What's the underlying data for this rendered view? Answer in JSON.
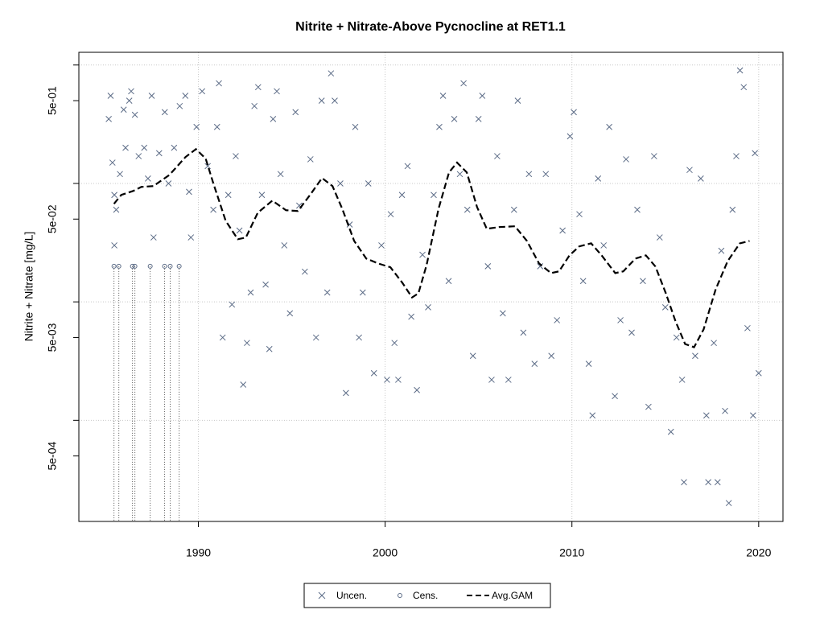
{
  "chart_data": {
    "type": "scatter",
    "title": "Nitrite + Nitrate-Above Pycnocline at RET1.1",
    "y_label": "Nitrite + Nitrate [mg/L]",
    "log_y": true,
    "grid": true,
    "legend": "bottom",
    "xlim": [
      1983.6,
      2021.3
    ],
    "ylim": [
      0.00014,
      1.28
    ],
    "xticks": [
      1990,
      2000,
      2010,
      2020
    ],
    "yticks": [
      {
        "value": 0.5,
        "label": "5e-01"
      },
      {
        "value": 0.05,
        "label": "5e-02"
      },
      {
        "value": 0.005,
        "label": "5e-03"
      },
      {
        "value": 0.0005,
        "label": "5e-04"
      }
    ],
    "yminor_ticks": [
      1,
      0.1,
      0.01,
      0.001
    ],
    "series": [
      {
        "name": "Uncen.",
        "marker": "x",
        "color": "#5b6b86",
        "x": [
          1985.2,
          1985.3,
          1985.4,
          1985.5,
          1985.5,
          1985.6,
          1985.8,
          1986.0,
          1986.1,
          1986.3,
          1986.4,
          1986.6,
          1986.8,
          1987.1,
          1987.3,
          1987.5,
          1987.6,
          1987.9,
          1988.2,
          1988.4,
          1988.7,
          1989.0,
          1989.3,
          1989.5,
          1989.6,
          1989.9,
          1990.2,
          1990.5,
          1990.8,
          1991.0,
          1991.1,
          1991.3,
          1991.6,
          1991.8,
          1992.0,
          1992.2,
          1992.4,
          1992.6,
          1992.8,
          1993.0,
          1993.2,
          1993.4,
          1993.6,
          1993.8,
          1994.0,
          1994.2,
          1994.4,
          1994.6,
          1994.9,
          1995.2,
          1995.4,
          1995.7,
          1996.0,
          1996.3,
          1996.6,
          1996.9,
          1997.1,
          1997.3,
          1997.6,
          1997.9,
          1998.1,
          1998.4,
          1998.6,
          1998.8,
          1999.1,
          1999.4,
          1999.8,
          2000.1,
          2000.3,
          2000.5,
          2000.7,
          2000.9,
          2001.2,
          2001.4,
          2001.7,
          2002.0,
          2002.3,
          2002.6,
          2002.9,
          2003.1,
          2003.4,
          2003.7,
          2004.0,
          2004.2,
          2004.4,
          2004.7,
          2005.0,
          2005.2,
          2005.5,
          2005.7,
          2006.0,
          2006.3,
          2006.6,
          2006.9,
          2007.1,
          2007.4,
          2007.7,
          2008.0,
          2008.3,
          2008.6,
          2008.9,
          2009.2,
          2009.5,
          2009.9,
          2010.1,
          2010.4,
          2010.6,
          2010.9,
          2011.1,
          2011.4,
          2011.7,
          2012.0,
          2012.3,
          2012.6,
          2012.9,
          2013.2,
          2013.5,
          2013.8,
          2014.1,
          2014.4,
          2014.7,
          2015.0,
          2015.3,
          2015.6,
          2015.9,
          2016.0,
          2016.3,
          2016.6,
          2016.9,
          2017.2,
          2017.3,
          2017.6,
          2017.8,
          2018.0,
          2018.2,
          2018.4,
          2018.6,
          2018.8,
          2019.0,
          2019.2,
          2019.4,
          2019.7,
          2019.8,
          2020.0
        ],
        "values": [
          0.35,
          0.55,
          0.15,
          0.08,
          0.03,
          0.06,
          0.12,
          0.42,
          0.2,
          0.5,
          0.6,
          0.38,
          0.17,
          0.2,
          0.11,
          0.55,
          0.035,
          0.18,
          0.4,
          0.1,
          0.2,
          0.45,
          0.55,
          0.085,
          0.035,
          0.3,
          0.6,
          0.14,
          0.06,
          0.3,
          0.7,
          0.005,
          0.08,
          0.0095,
          0.17,
          0.04,
          0.002,
          0.0045,
          0.012,
          0.45,
          0.65,
          0.08,
          0.014,
          0.004,
          0.35,
          0.6,
          0.12,
          0.03,
          0.008,
          0.4,
          0.065,
          0.018,
          0.16,
          0.005,
          0.5,
          0.012,
          0.85,
          0.5,
          0.1,
          0.0017,
          0.045,
          0.3,
          0.005,
          0.012,
          0.1,
          0.0025,
          0.03,
          0.0022,
          0.055,
          0.0045,
          0.0022,
          0.08,
          0.14,
          0.0075,
          0.0018,
          0.025,
          0.009,
          0.08,
          0.3,
          0.55,
          0.015,
          0.35,
          0.12,
          0.7,
          0.06,
          0.0035,
          0.35,
          0.55,
          0.02,
          0.0022,
          0.17,
          0.008,
          0.0022,
          0.06,
          0.5,
          0.0055,
          0.12,
          0.003,
          0.02,
          0.12,
          0.0035,
          0.007,
          0.04,
          0.25,
          0.4,
          0.055,
          0.015,
          0.003,
          0.0011,
          0.11,
          0.03,
          0.3,
          0.0016,
          0.007,
          0.16,
          0.0055,
          0.06,
          0.015,
          0.0013,
          0.17,
          0.035,
          0.009,
          0.0008,
          0.005,
          0.0022,
          0.0003,
          0.13,
          0.0035,
          0.11,
          0.0011,
          0.0003,
          0.0045,
          0.0003,
          0.027,
          0.0012,
          0.0002,
          0.06,
          0.17,
          0.9,
          0.65,
          0.006,
          0.0011,
          0.18,
          0.0025
        ]
      },
      {
        "name": "Cens.",
        "marker": "circle",
        "color": "#5b6b86",
        "x": [
          1985.48,
          1985.74,
          1986.47,
          1986.6,
          1987.42,
          1988.19,
          1988.49,
          1988.97
        ],
        "values": [
          0.02,
          0.02,
          0.02,
          0.02,
          0.02,
          0.02,
          0.02,
          0.02
        ]
      },
      {
        "name": "Avg.GAM",
        "marker": "dashed-line",
        "color": "#000000",
        "x": [
          1985.48,
          1985.87,
          1986.52,
          1986.95,
          1987.59,
          1988.45,
          1989.31,
          1989.87,
          1990.39,
          1990.82,
          1991.46,
          1992.11,
          1992.54,
          1993.18,
          1993.96,
          1994.69,
          1995.33,
          1995.98,
          1996.62,
          1997.18,
          1997.7,
          1998.34,
          1998.99,
          1999.63,
          2000.28,
          2000.92,
          2001.44,
          2001.78,
          2002.22,
          2002.86,
          2003.42,
          2003.85,
          2004.37,
          2004.92,
          2005.44,
          2006.09,
          2006.95,
          2007.59,
          2008.24,
          2008.88,
          2009.31,
          2009.87,
          2010.39,
          2011.03,
          2011.59,
          2012.32,
          2012.75,
          2013.4,
          2013.96,
          2014.47,
          2015.03,
          2015.55,
          2016.06,
          2016.54,
          2017.05,
          2017.7,
          2018.34,
          2018.99,
          2019.51
        ],
        "values": [
          0.0673,
          0.08,
          0.0865,
          0.0935,
          0.095,
          0.118,
          0.167,
          0.195,
          0.162,
          0.098,
          0.0484,
          0.0338,
          0.0349,
          0.0566,
          0.0716,
          0.0594,
          0.0585,
          0.08,
          0.111,
          0.095,
          0.0612,
          0.0327,
          0.0232,
          0.0211,
          0.0196,
          0.0145,
          0.0109,
          0.0118,
          0.0205,
          0.0612,
          0.124,
          0.15,
          0.124,
          0.0632,
          0.0414,
          0.0428,
          0.0435,
          0.0327,
          0.0211,
          0.0175,
          0.0181,
          0.0247,
          0.0294,
          0.0312,
          0.0247,
          0.0175,
          0.0181,
          0.0232,
          0.0247,
          0.0199,
          0.0118,
          0.00684,
          0.00441,
          0.00414,
          0.00585,
          0.0128,
          0.0221,
          0.0312,
          0.0327
        ]
      }
    ]
  }
}
